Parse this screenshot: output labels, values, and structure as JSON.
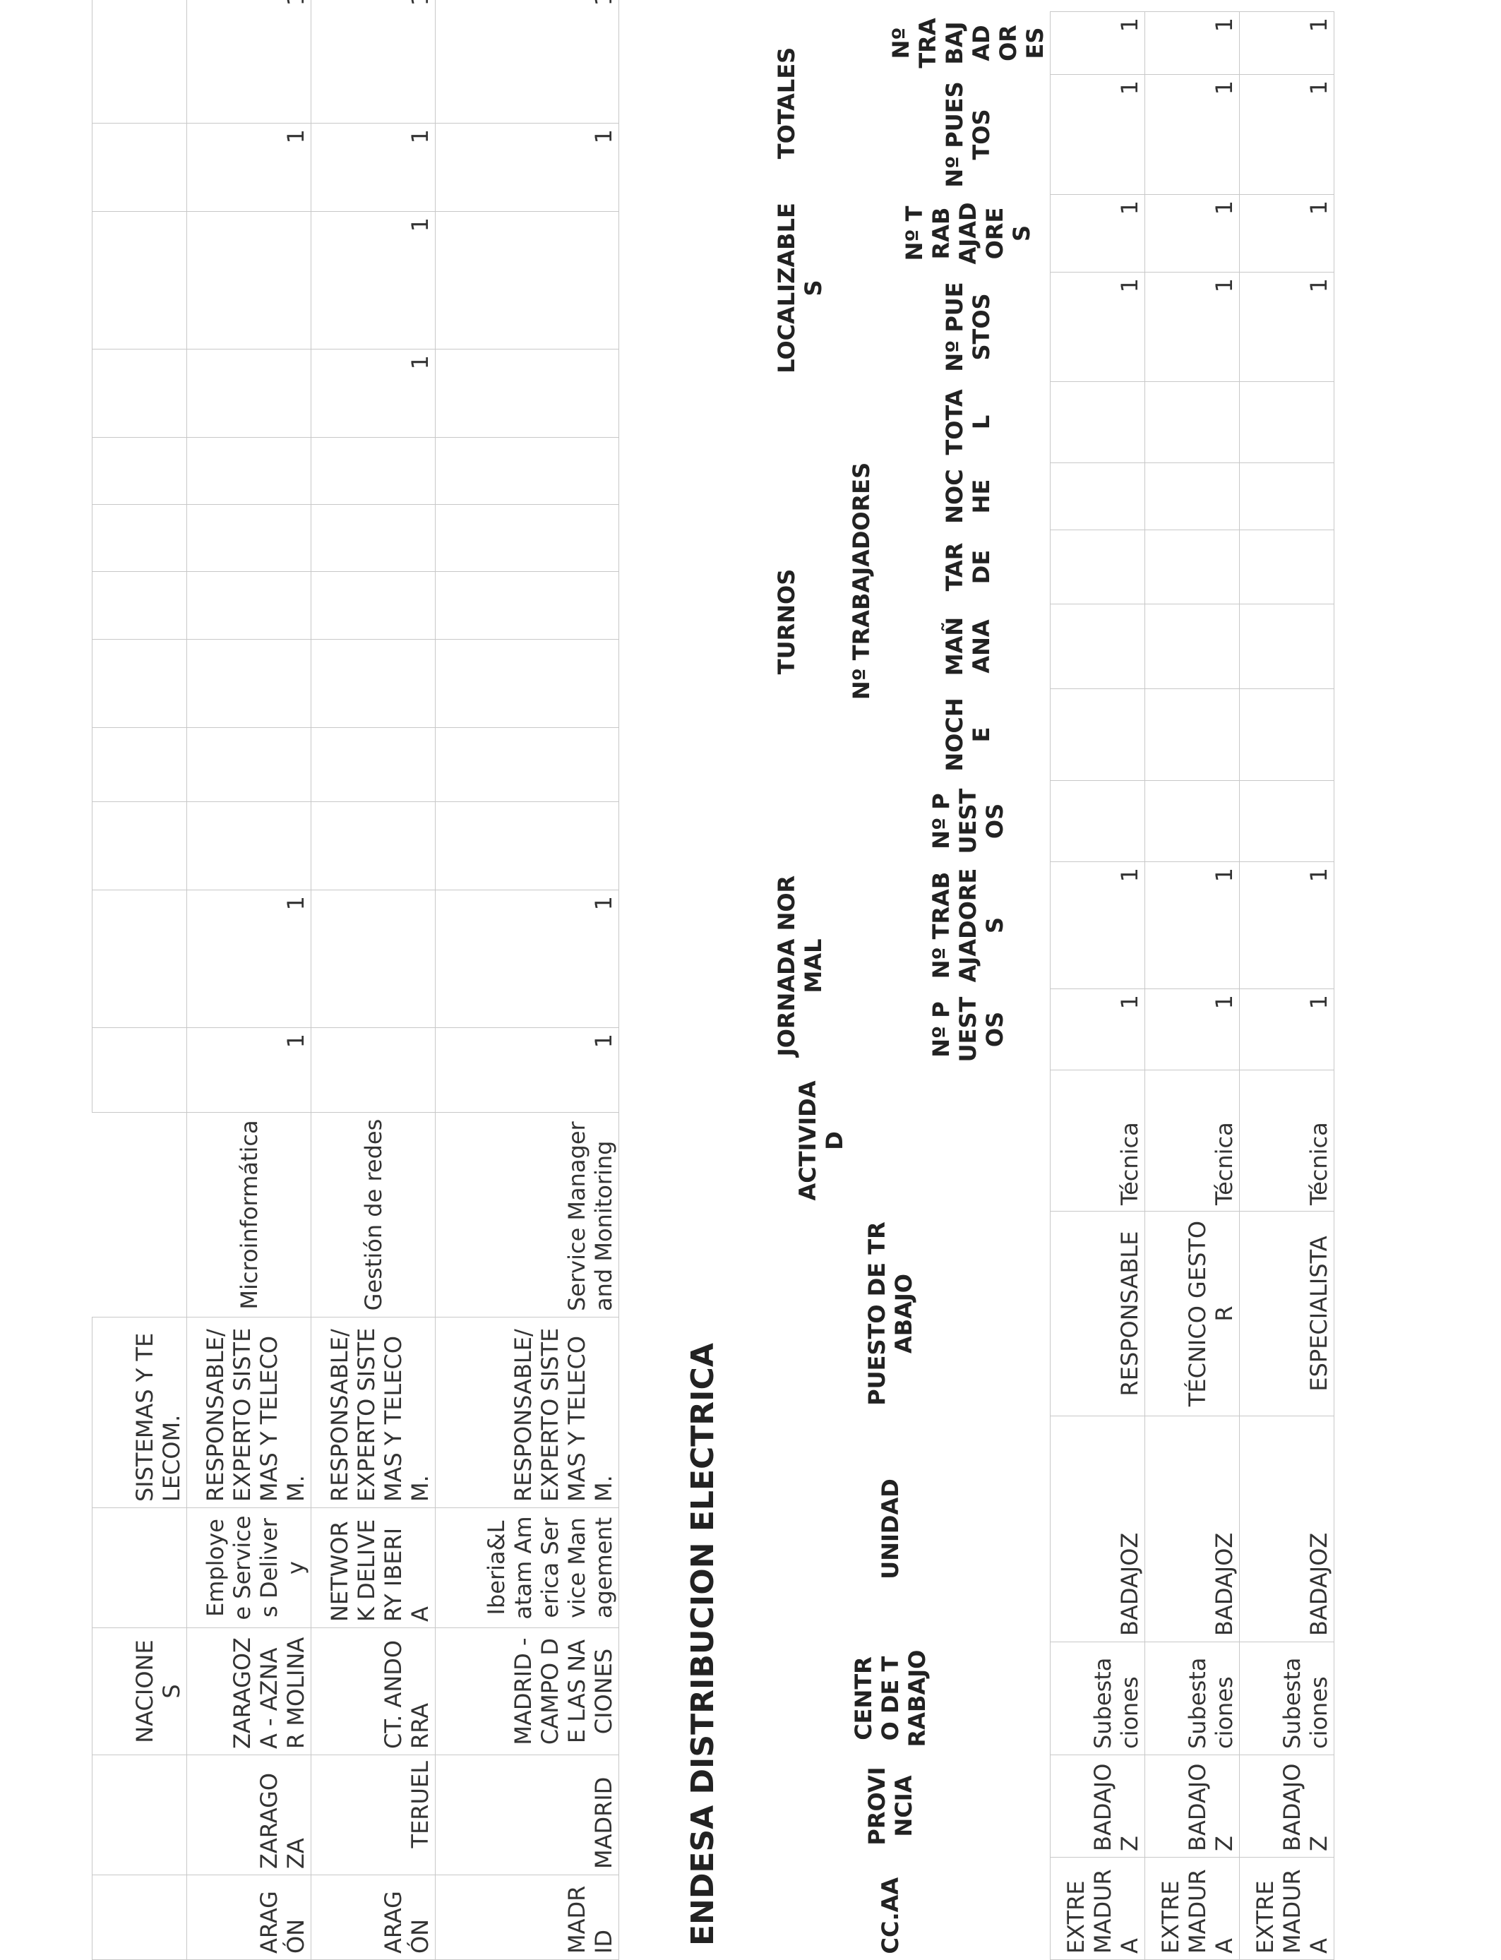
{
  "top_table": {
    "row0": {
      "region": "",
      "province": "",
      "center": "NACIONES",
      "unit": "",
      "position": "SISTEMAS Y TELECOM.",
      "activity": ""
    },
    "rows": [
      {
        "region": "ARAGÓN",
        "province": "ZARAGOZA",
        "center": "ZARAGOZA - AZNAR MOLINA",
        "unit": "Employee Services Delivery",
        "position": "RESPONSABLE/EXPERTO SISTEMAS Y TELECOM.",
        "activity": "Microinformática",
        "v": [
          "1",
          "1",
          "",
          "",
          "",
          "",
          "",
          "",
          "",
          "",
          "",
          "1",
          "1"
        ]
      },
      {
        "region": "ARAGÓN",
        "province": "TERUEL",
        "center": "CT. ANDORRA",
        "unit": "NETWORK DELIVERY IBERIA",
        "position": "RESPONSABLE/EXPERTO SISTEMAS Y TELECOM.",
        "activity": "Gestión de redes",
        "v": [
          "",
          "",
          "",
          "",
          "",
          "",
          "",
          "",
          "",
          "1",
          "1",
          "1",
          "1"
        ]
      },
      {
        "region": "MADRID",
        "province": "MADRID",
        "center": "MADRID - CAMPO DE LAS NACIONES",
        "unit": "Iberia&Latam America Service Management",
        "position": "RESPONSABLE/EXPERTO SISTEMAS Y TELECOM.",
        "activity": "Service Manager and Monitoring",
        "v": [
          "1",
          "1",
          "",
          "",
          "",
          "",
          "",
          "",
          "",
          "",
          "",
          "1",
          "1"
        ]
      }
    ]
  },
  "section_title": "ENDESA DISTRIBUCION ELECTRICA",
  "bottom_table": {
    "headers": {
      "ccaa": "CC.AA",
      "provincia": "PROVINCIA",
      "centro": "CENTRO DE TRABAJO",
      "unidad": "UNIDAD",
      "puesto": "PUESTO DE TRABAJO",
      "actividad": "ACTIVIDAD",
      "jornada": "JORNADA NORMAL",
      "turnos": "TURNOS",
      "trabajadores": "Nº TRABAJADORES",
      "localizables": "LOCALIZABLES",
      "totales": "TOTALES",
      "n_puestos": "Nº PUESTOS",
      "n_trabajadores": "Nº TRABAJADORES",
      "noche": "NOCHE",
      "manana": "MAÑANA",
      "tarde": "TARDE",
      "noche2": "NOCHE",
      "total": "TOTAL"
    },
    "rows": [
      {
        "ccaa": "EXTREMADURA",
        "provincia": "BADAJOZ",
        "centro": "Subestaciones",
        "unidad": "BADAJOZ",
        "puesto": "RESPONSABLE",
        "actividad": "Técnica",
        "v": [
          "1",
          "1",
          "",
          "",
          "",
          "",
          "",
          "",
          "1",
          "1",
          "1",
          "1"
        ]
      },
      {
        "ccaa": "EXTREMADURA",
        "provincia": "BADAJOZ",
        "centro": "Subestaciones",
        "unidad": "BADAJOZ",
        "puesto": "TÉCNICO GESTOR",
        "actividad": "Técnica",
        "v": [
          "1",
          "1",
          "",
          "",
          "",
          "",
          "",
          "",
          "1",
          "1",
          "1",
          "1"
        ]
      },
      {
        "ccaa": "EXTREMADURA",
        "provincia": "BADAJOZ",
        "centro": "Subestaciones",
        "unidad": "BADAJOZ",
        "puesto": "ESPECIALISTA",
        "actividad": "Técnica",
        "v": [
          "1",
          "1",
          "",
          "",
          "",
          "",
          "",
          "",
          "1",
          "1",
          "1",
          "1"
        ]
      }
    ]
  }
}
